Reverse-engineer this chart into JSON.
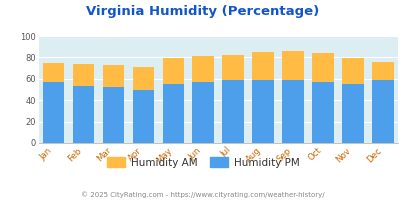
{
  "title": "Virginia Humidity (Percentage)",
  "months": [
    "Jan",
    "Feb",
    "Mar",
    "Apr",
    "May",
    "Jun",
    "Jul",
    "Aug",
    "Sep",
    "Oct",
    "Nov",
    "Dec"
  ],
  "humidity_pm": [
    57,
    53,
    52,
    50,
    55,
    57,
    59,
    59,
    59,
    57,
    55,
    59
  ],
  "humidity_am_top": [
    18,
    21,
    21,
    21,
    24,
    24,
    23,
    26,
    27,
    27,
    24,
    17
  ],
  "color_pm": "#4d9fec",
  "color_am": "#ffbb44",
  "bg_color": "#ddeef2",
  "ylim": [
    0,
    100
  ],
  "yticks": [
    0,
    20,
    40,
    60,
    80,
    100
  ],
  "title_color": "#1155cc",
  "xtick_color": "#cc6600",
  "ytick_color": "#555555",
  "legend_text_color": "#333333",
  "footer": "© 2025 CityRating.com - https://www.cityrating.com/weather-history/",
  "footer_color": "#888888",
  "legend_am_label": "Humidity AM",
  "legend_pm_label": "Humidity PM",
  "grid_color": "#ffffff"
}
